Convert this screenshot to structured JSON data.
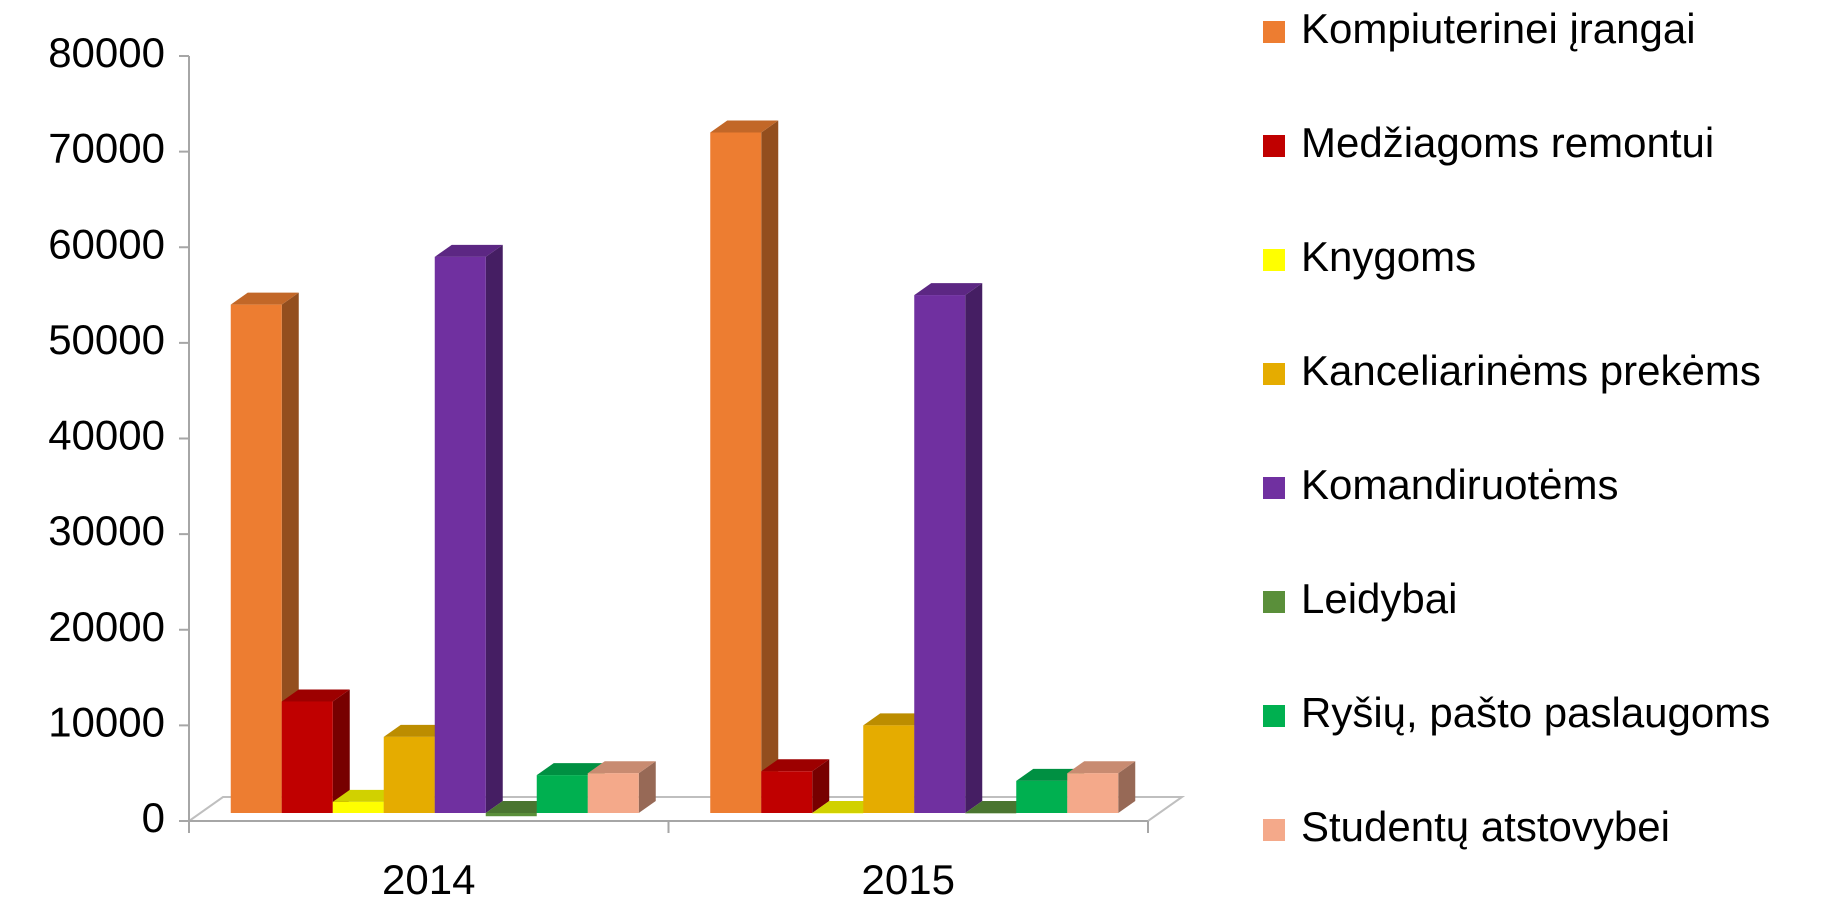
{
  "chart_data": {
    "type": "bar3d",
    "categories": [
      "2014",
      "2015"
    ],
    "series": [
      {
        "name": "Kompiuterinei įrangai",
        "color": "#ed7d31",
        "values": [
          54000,
          72000
        ]
      },
      {
        "name": "Medžiagoms remontui",
        "color": "#c00000",
        "values": [
          12500,
          5200
        ]
      },
      {
        "name": "Knygoms",
        "color": "#ffff00",
        "values": [
          2000,
          800
        ]
      },
      {
        "name": "Kanceliarinėms prekėms",
        "color": "#e5ac00",
        "values": [
          8800,
          10000
        ]
      },
      {
        "name": "Komandiruotėms",
        "color": "#7030a0",
        "values": [
          59000,
          55000
        ]
      },
      {
        "name": "Leidybai",
        "color": "#5a8f3a",
        "values": [
          500,
          800
        ]
      },
      {
        "name": "Ryšių, pašto paslaugoms",
        "color": "#00b050",
        "values": [
          4800,
          4200
        ]
      },
      {
        "name": "Studentų atstovybei",
        "color": "#f4a98a",
        "values": [
          5000,
          5000
        ]
      }
    ],
    "ylim": [
      0,
      80000
    ],
    "yticks": [
      0,
      10000,
      20000,
      30000,
      40000,
      50000,
      60000,
      70000,
      80000
    ],
    "legend": "right"
  }
}
